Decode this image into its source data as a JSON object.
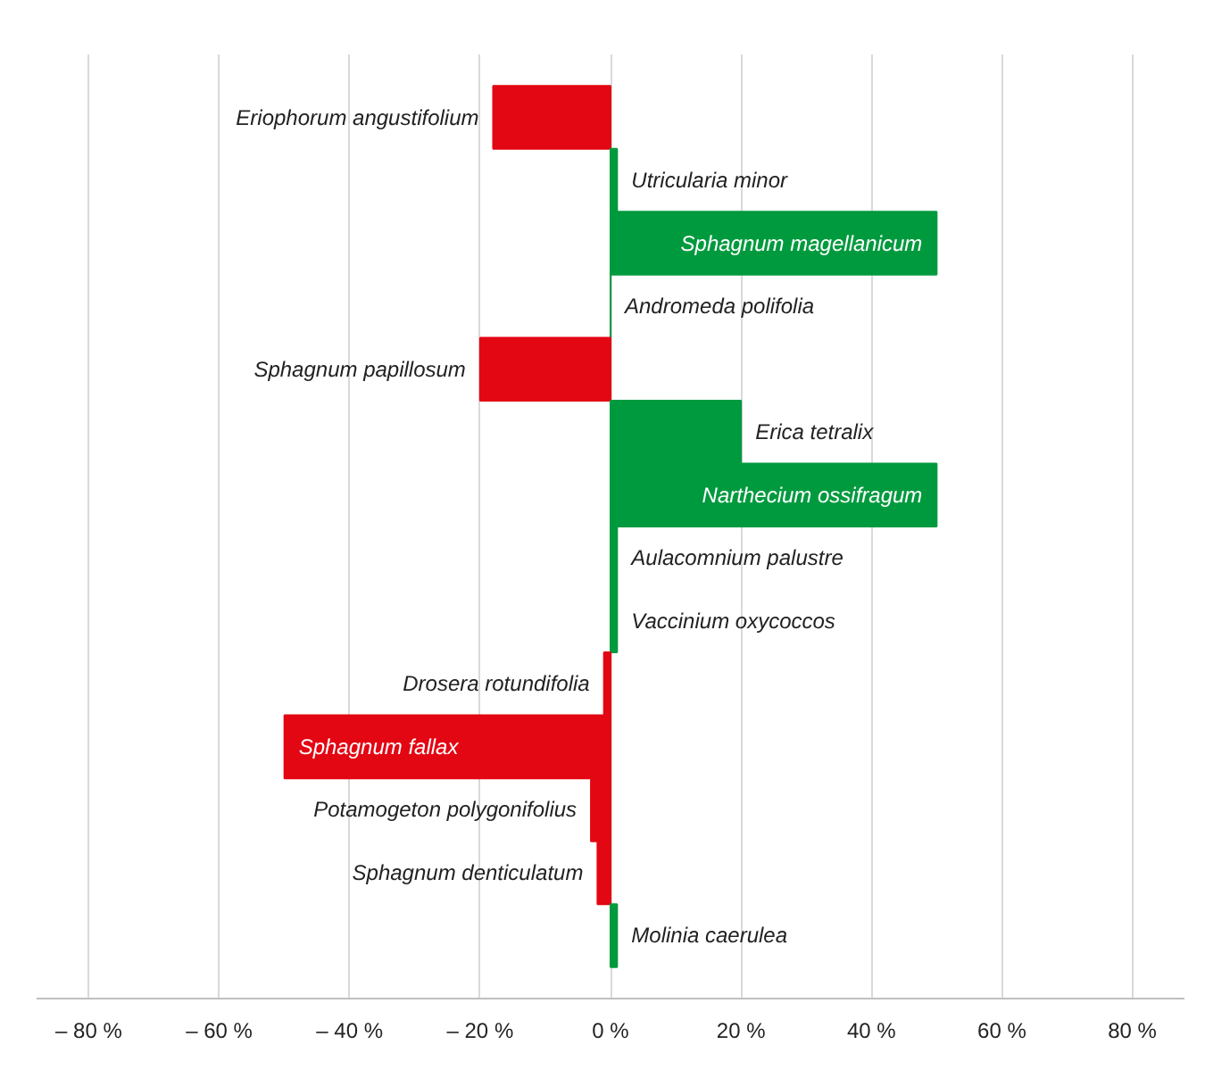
{
  "chart_data": {
    "type": "bar",
    "orientation": "horizontal",
    "categories": [
      "Eriophorum angustifolium",
      "Utricularia minor",
      "Sphagnum magellanicum",
      "Andromeda polifolia",
      "Sphagnum papillosum",
      "Erica tetralix",
      "Narthecium ossifragum",
      "Aulacomnium palustre",
      "Vaccinium oxycoccos",
      "Drosera rotundifolia",
      "Sphagnum fallax",
      "Potamogeton polygonifolius",
      "Sphagnum denticulatum",
      "Molinia caerulea"
    ],
    "values": [
      -18,
      1,
      50,
      0,
      -20,
      20,
      50,
      1,
      1,
      -1,
      -50,
      -3,
      -2,
      1
    ],
    "colors": [
      "#e30613",
      "#009a3e",
      "#009a3e",
      "#009a3e",
      "#e30613",
      "#009a3e",
      "#009a3e",
      "#009a3e",
      "#009a3e",
      "#e30613",
      "#e30613",
      "#e30613",
      "#e30613",
      "#009a3e"
    ],
    "xlim": [
      -88,
      88
    ],
    "xticks": [
      {
        "value": -80,
        "label": "– 80 %"
      },
      {
        "value": -60,
        "label": "– 60 %"
      },
      {
        "value": -40,
        "label": "– 40 %"
      },
      {
        "value": -20,
        "label": "– 20 %"
      },
      {
        "value": 0,
        "label": "0 %"
      },
      {
        "value": 20,
        "label": "20 %"
      },
      {
        "value": 40,
        "label": "40 %"
      },
      {
        "value": 60,
        "label": "60 %"
      },
      {
        "value": 80,
        "label": "80 %"
      }
    ],
    "grid": "x",
    "tick_labels": "x"
  }
}
